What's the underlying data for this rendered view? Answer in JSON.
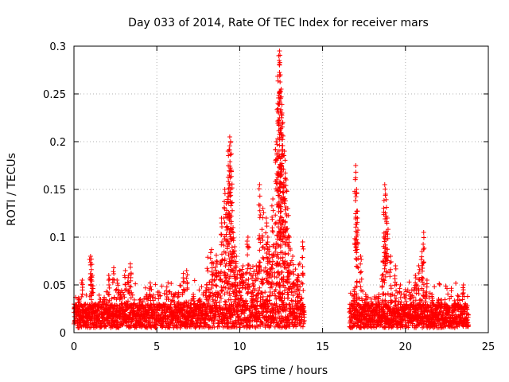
{
  "chart_data": {
    "type": "scatter",
    "title": "Day 033 of 2014, Rate Of TEC Index for receiver mars",
    "xlabel": "GPS time / hours",
    "ylabel": "ROTI / TECUs",
    "xlim": [
      0,
      25
    ],
    "ylim": [
      0,
      0.3
    ],
    "xticks": [
      0,
      5,
      10,
      15,
      20,
      25
    ],
    "yticks": [
      0,
      0.05,
      0.1,
      0.15,
      0.2,
      0.25,
      0.3
    ],
    "xtick_labels": [
      "0",
      "5",
      "10",
      "15",
      "20",
      "25"
    ],
    "ytick_labels": [
      "0",
      "0.05",
      "0.1",
      "0.15",
      "0.2",
      "0.25",
      "0.3"
    ],
    "grid": true,
    "marker": "+",
    "series": [
      {
        "name": "ROTI",
        "color": "#ff0000",
        "x": [
          0.1,
          0.3,
          0.5,
          0.7,
          1.0,
          1.05,
          1.1,
          1.3,
          1.5,
          1.8,
          2.1,
          2.4,
          2.6,
          2.8,
          3.1,
          3.3,
          3.4,
          3.6,
          4.0,
          4.4,
          4.6,
          4.8,
          5.2,
          5.5,
          6.0,
          6.3,
          6.6,
          6.8,
          7.2,
          7.6,
          8.0,
          8.3,
          8.6,
          8.9,
          9.1,
          9.2,
          9.3,
          9.4,
          9.45,
          9.5,
          9.6,
          9.7,
          9.8,
          10.0,
          10.2,
          10.5,
          10.8,
          11.0,
          11.2,
          11.4,
          11.6,
          11.7,
          11.8,
          12.0,
          12.2,
          12.3,
          12.35,
          12.4,
          12.45,
          12.5,
          12.55,
          12.6,
          12.7,
          12.8,
          12.9,
          13.0,
          13.2,
          13.5,
          13.8,
          16.7,
          16.9,
          17.0,
          17.05,
          17.1,
          17.3,
          17.6,
          18.0,
          18.4,
          18.6,
          18.7,
          18.75,
          18.8,
          18.9,
          19.1,
          19.4,
          19.7,
          20.0,
          20.3,
          20.6,
          20.8,
          21.0,
          21.1,
          21.3,
          21.6,
          22.0,
          22.4,
          22.8,
          23.2,
          23.5,
          23.7
        ],
        "y": [
          0.02,
          0.035,
          0.055,
          0.03,
          0.08,
          0.077,
          0.06,
          0.03,
          0.025,
          0.035,
          0.06,
          0.068,
          0.055,
          0.04,
          0.065,
          0.06,
          0.072,
          0.03,
          0.035,
          0.04,
          0.052,
          0.03,
          0.028,
          0.03,
          0.04,
          0.042,
          0.062,
          0.065,
          0.04,
          0.035,
          0.05,
          0.087,
          0.075,
          0.12,
          0.15,
          0.135,
          0.19,
          0.205,
          0.2,
          0.17,
          0.11,
          0.09,
          0.08,
          0.065,
          0.07,
          0.1,
          0.06,
          0.07,
          0.155,
          0.13,
          0.12,
          0.1,
          0.09,
          0.14,
          0.2,
          0.24,
          0.29,
          0.295,
          0.27,
          0.255,
          0.23,
          0.22,
          0.19,
          0.16,
          0.13,
          0.1,
          0.08,
          0.06,
          0.095,
          0.02,
          0.045,
          0.175,
          0.15,
          0.12,
          0.08,
          0.04,
          0.03,
          0.04,
          0.06,
          0.1,
          0.155,
          0.145,
          0.12,
          0.08,
          0.07,
          0.05,
          0.045,
          0.04,
          0.06,
          0.07,
          0.085,
          0.105,
          0.055,
          0.04,
          0.035,
          0.03,
          0.028,
          0.03,
          0.05,
          0.02
        ]
      }
    ],
    "gap_hours": [
      13.9,
      16.6
    ],
    "baseline_band": [
      0.005,
      0.03
    ]
  }
}
